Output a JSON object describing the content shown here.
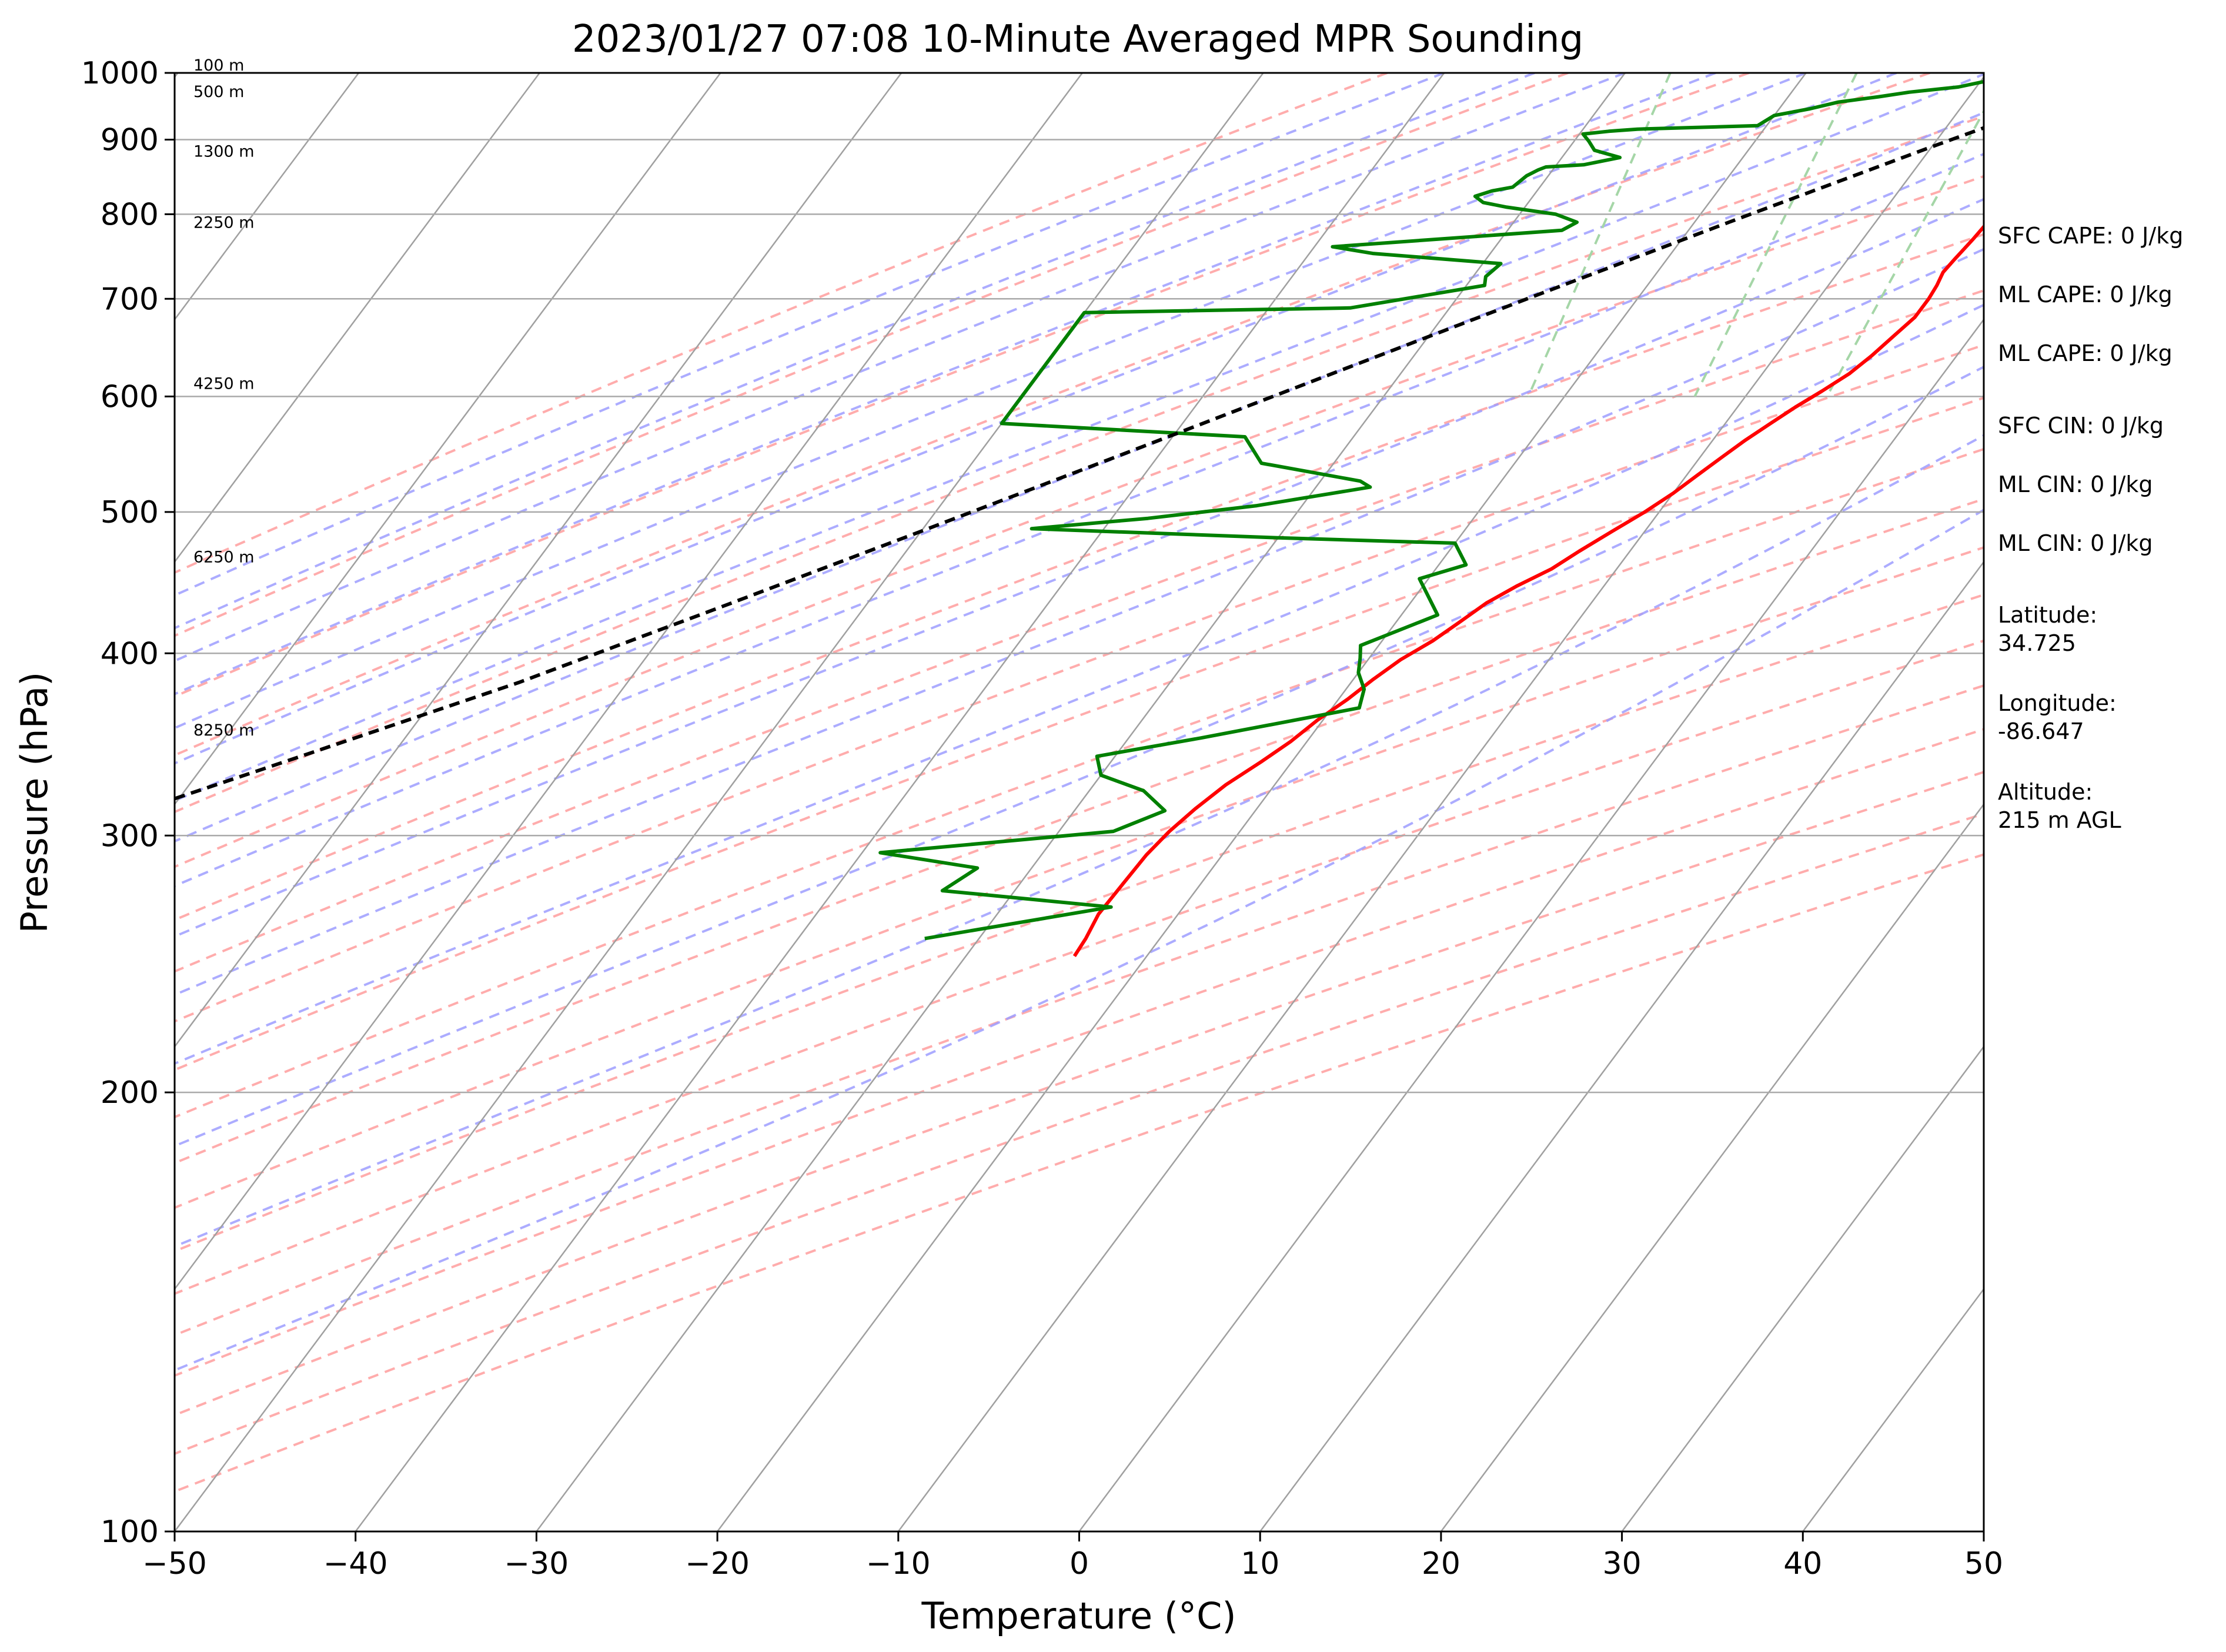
{
  "chart_data": {
    "type": "line",
    "title": "2023/01/27 07:08 10-Minute Averaged MPR Sounding",
    "xlabel": "Temperature (°C)",
    "ylabel": "Pressure (hPa)",
    "xlim": [
      -50,
      50
    ],
    "ylim": [
      1000,
      100
    ],
    "yscale": "log",
    "skew": "skew-T log-P",
    "x_ticks": [
      "−50",
      "−40",
      "−30",
      "−20",
      "−10",
      "0",
      "10",
      "20",
      "30",
      "40",
      "50"
    ],
    "y_ticks": [
      {
        "p": 100,
        "label": "100"
      },
      {
        "p": 200,
        "label": "200"
      },
      {
        "p": 300,
        "label": "300"
      },
      {
        "p": 400,
        "label": "400"
      },
      {
        "p": 500,
        "label": "500"
      },
      {
        "p": 600,
        "label": "600"
      },
      {
        "p": 700,
        "label": "700"
      },
      {
        "p": 800,
        "label": "800"
      },
      {
        "p": 900,
        "label": "900"
      },
      {
        "p": 1000,
        "label": "1000"
      }
    ],
    "colors": {
      "temperature": "#ff0000",
      "dewpoint": "#008000",
      "parcel": "#000000",
      "isotherm": "#a0a0a0",
      "dry_adiabat": "#ff9e9e",
      "moist_adiabat": "#9e9eff",
      "mixing_ratio": "#a5d6a7",
      "isobar": "#aaaaaa"
    },
    "series": [
      {
        "key": "temperature",
        "points": [
          [
            -1.8,
            1000
          ],
          [
            0.2,
            990
          ],
          [
            0.8,
            975
          ],
          [
            0.2,
            962
          ],
          [
            -1.8,
            945
          ],
          [
            -3.4,
            925
          ],
          [
            -4.4,
            905
          ],
          [
            -4.6,
            890
          ],
          [
            -4.9,
            870
          ],
          [
            -4.3,
            855
          ],
          [
            -4.0,
            840
          ],
          [
            -4.2,
            825
          ],
          [
            -3.7,
            810
          ],
          [
            -3.8,
            790
          ],
          [
            -3.9,
            770
          ],
          [
            -4.1,
            745
          ],
          [
            -4.2,
            730
          ],
          [
            -4.0,
            715
          ],
          [
            -3.9,
            700
          ],
          [
            -3.9,
            680
          ],
          [
            -4.3,
            660
          ],
          [
            -4.7,
            640
          ],
          [
            -5.2,
            622
          ],
          [
            -6.0,
            605
          ],
          [
            -6.8,
            590
          ],
          [
            -7.5,
            575
          ],
          [
            -8.2,
            560
          ],
          [
            -8.8,
            545
          ],
          [
            -9.4,
            530
          ],
          [
            -10.0,
            515
          ],
          [
            -10.8,
            500
          ],
          [
            -11.8,
            485
          ],
          [
            -12.8,
            470
          ],
          [
            -13.6,
            457
          ],
          [
            -14.8,
            445
          ],
          [
            -15.8,
            433
          ],
          [
            -16.5,
            420
          ],
          [
            -17.2,
            408
          ],
          [
            -18.2,
            396
          ],
          [
            -18.9,
            384
          ],
          [
            -19.5,
            372
          ],
          [
            -20.3,
            360
          ],
          [
            -20.9,
            348
          ],
          [
            -21.7,
            337
          ],
          [
            -22.7,
            325
          ],
          [
            -23.4,
            313
          ],
          [
            -23.9,
            302
          ],
          [
            -24.2,
            291
          ],
          [
            -24.3,
            278
          ],
          [
            -24.4,
            265
          ],
          [
            -24.1,
            255
          ],
          [
            -24.0,
            248
          ]
        ]
      },
      {
        "key": "dewpoint",
        "points": [
          [
            -2.8,
            1000
          ],
          [
            -6.0,
            998
          ],
          [
            -9.0,
            992
          ],
          [
            -10.0,
            985
          ],
          [
            -11.0,
            978
          ],
          [
            -13.5,
            970
          ],
          [
            -15.0,
            963
          ],
          [
            -17.0,
            955
          ],
          [
            -18.3,
            945
          ],
          [
            -20.0,
            935
          ],
          [
            -20.5,
            920
          ],
          [
            -27.0,
            915
          ],
          [
            -28.5,
            912
          ],
          [
            -29.8,
            908
          ],
          [
            -29.2,
            898
          ],
          [
            -28.5,
            885
          ],
          [
            -26.8,
            875
          ],
          [
            -28.5,
            865
          ],
          [
            -30.5,
            862
          ],
          [
            -30.8,
            858
          ],
          [
            -31.2,
            850
          ],
          [
            -31.5,
            835
          ],
          [
            -32.5,
            830
          ],
          [
            -33.2,
            823
          ],
          [
            -32.5,
            815
          ],
          [
            -31.0,
            809
          ],
          [
            -28.0,
            800
          ],
          [
            -26.5,
            790
          ],
          [
            -27.0,
            780
          ],
          [
            -39.0,
            760
          ],
          [
            -36.5,
            752
          ],
          [
            -29.0,
            740
          ],
          [
            -29.3,
            725
          ],
          [
            -29.0,
            715
          ],
          [
            -35.5,
            690
          ],
          [
            -50.0,
            685
          ],
          [
            -50.0,
            600
          ],
          [
            -50.0,
            575
          ],
          [
            -36.0,
            563
          ],
          [
            -34.0,
            540
          ],
          [
            -27.8,
            525
          ],
          [
            -27.0,
            520
          ],
          [
            -32.5,
            505
          ],
          [
            -38.0,
            495
          ],
          [
            -44.0,
            487
          ],
          [
            -30.0,
            480
          ],
          [
            -20.0,
            476
          ],
          [
            -18.5,
            460
          ],
          [
            -20.5,
            450
          ],
          [
            -18.0,
            425
          ],
          [
            -21.0,
            405
          ],
          [
            -20.5,
            397
          ],
          [
            -20.0,
            388
          ],
          [
            -19.0,
            378
          ],
          [
            -18.5,
            367
          ],
          [
            -26.0,
            350
          ],
          [
            -31.0,
            340
          ],
          [
            -30.0,
            330
          ],
          [
            -27.0,
            322
          ],
          [
            -25.0,
            312
          ],
          [
            -27.0,
            302
          ],
          [
            -39.0,
            292
          ],
          [
            -33.0,
            285
          ],
          [
            -34.0,
            275
          ],
          [
            -24.0,
            268
          ],
          [
            -33.0,
            255
          ]
        ]
      },
      {
        "key": "parcel",
        "points": [
          [
            -1.8,
            1000
          ],
          [
            -10.0,
            890
          ],
          [
            -18.1,
            790
          ],
          [
            -26.1,
            700
          ],
          [
            -34.0,
            620
          ],
          [
            -42.0,
            548
          ],
          [
            -50.0,
            485
          ],
          [
            -58.0,
            430
          ],
          [
            -66.0,
            382
          ],
          [
            -75.0,
            340
          ],
          [
            -84.0,
            303
          ]
        ]
      }
    ],
    "height_labels": [
      {
        "p": 1000,
        "label": "100 m"
      },
      {
        "p": 959,
        "label": "500 m"
      },
      {
        "p": 873,
        "label": "1300 m"
      },
      {
        "p": 780,
        "label": "2250 m"
      },
      {
        "p": 605,
        "label": "4250 m"
      },
      {
        "p": 460,
        "label": "6250 m"
      },
      {
        "p": 350,
        "label": "8250 m"
      }
    ],
    "mixing_ratio_lines": [
      {
        "t600": -22.0,
        "t1000": -27.5
      },
      {
        "t600": -12.8,
        "t1000": -17.2
      },
      {
        "t600": -5.5,
        "t1000": -9.0
      },
      {
        "t600": 4.0,
        "t1000": 1.0
      },
      {
        "t600": 11.3,
        "t1000": 8.6
      },
      {
        "t600": 16.5,
        "t1000": 14.0
      },
      {
        "t600": 23.5,
        "t1000": 21.2
      },
      {
        "t600": 30.0,
        "t1000": 28.0
      },
      {
        "t600": 34.0,
        "t1000": 32.5
      }
    ],
    "dry_adiabats_theta_K": [
      230,
      240,
      250,
      260,
      270,
      280,
      290,
      300,
      310,
      320,
      330,
      340,
      350,
      360,
      370,
      380,
      390,
      400,
      410,
      420
    ],
    "moist_adiabats_tw_C": [
      -40,
      -35,
      -30,
      -25,
      -20,
      -15,
      -10,
      -5,
      0,
      5,
      10,
      15,
      20,
      25,
      30
    ]
  },
  "panel": [
    {
      "label": "SFC CAPE: 0 J/kg"
    },
    {
      "label": "ML CAPE: 0 J/kg"
    },
    {
      "label": "ML CAPE: 0 J/kg"
    },
    {
      "label": "SFC CIN: 0 J/kg"
    },
    {
      "label": "ML CIN: 0 J/kg"
    },
    {
      "label": "ML CIN: 0 J/kg"
    },
    {
      "label": "Latitude:",
      "value": "34.725"
    },
    {
      "label": "Longitude:",
      "value": "-86.647"
    },
    {
      "label": "Altitude:",
      "value": "215 m AGL"
    }
  ]
}
